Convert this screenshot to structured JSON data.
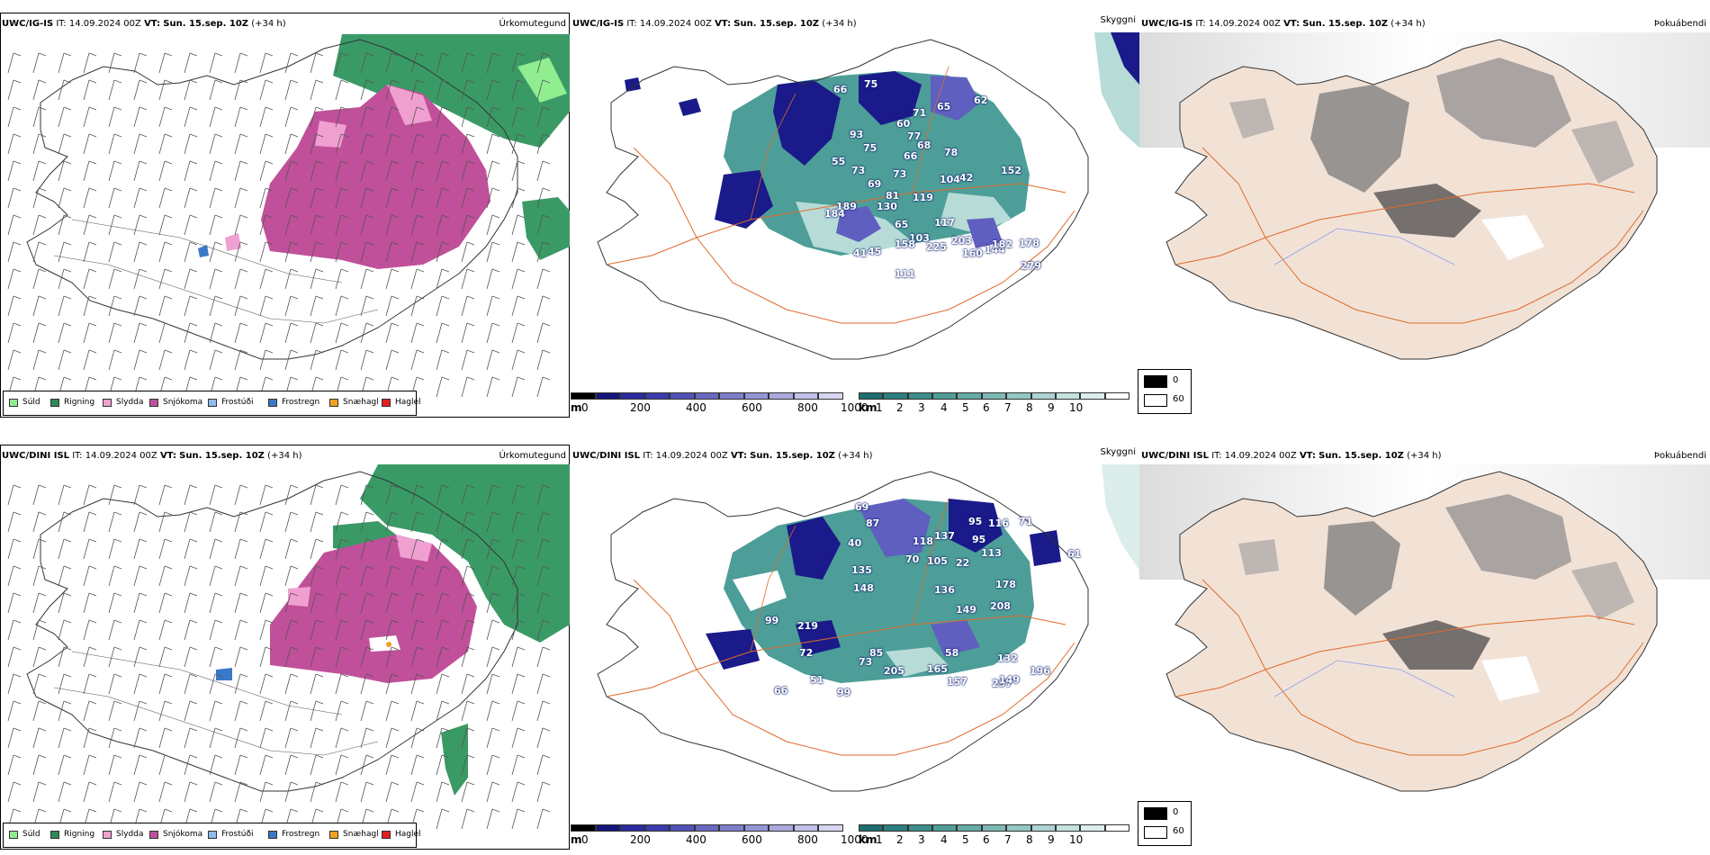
{
  "rows": [
    {
      "id": "ig",
      "precip": {
        "model": "UWC/IG-IS",
        "it_label": "IT:",
        "it_value": "14.09.2024 00Z",
        "vt_label": "VT:",
        "vt_value": "Sun. 15.sep. 10Z",
        "lead": "(+34 h)",
        "title": "Úrkomutegund"
      },
      "cloud": {
        "model": "UWC/IG-IS",
        "it_label": "IT:",
        "it_value": "14.09.2024 00Z",
        "vt_label": "VT:",
        "vt_value": "Sun. 15.sep. 10Z",
        "lead": "(+34 h)",
        "title": "Skyggni",
        "height_labels": [
          "75",
          "66",
          "62",
          "65",
          "71",
          "60",
          "77",
          "68",
          "66",
          "78",
          "93",
          "75",
          "42",
          "55",
          "73",
          "69",
          "152",
          "104",
          "81",
          "119",
          "73",
          "130",
          "189",
          "184",
          "65",
          "117",
          "203",
          "103",
          "144",
          "182",
          "178",
          "158",
          "225",
          "160",
          "279",
          "45",
          "41",
          "111"
        ]
      },
      "fog": {
        "model": "UWC/IG-IS",
        "it_label": "IT:",
        "it_value": "14.09.2024 00Z",
        "vt_label": "VT:",
        "vt_value": "Sun. 15.sep. 10Z",
        "lead": "(+34 h)",
        "title": "Þokuábendi"
      }
    },
    {
      "id": "dini",
      "precip": {
        "model": "UWC/DINI ISL",
        "it_label": "IT:",
        "it_value": "14.09.2024 00Z",
        "vt_label": "VT:",
        "vt_value": "Sun. 15.sep. 10Z",
        "lead": "(+34 h)",
        "title": "Úrkomutegund"
      },
      "cloud": {
        "model": "UWC/DINI ISL",
        "it_label": "IT:",
        "it_value": "14.09.2024 00Z",
        "vt_label": "VT:",
        "vt_value": "Sun. 15.sep. 10Z",
        "lead": "(+34 h)",
        "title": "Skyggni",
        "height_labels": [
          "69",
          "95",
          "116",
          "71",
          "87",
          "137",
          "118",
          "61",
          "95",
          "113",
          "105",
          "70",
          "22",
          "178",
          "40",
          "135",
          "148",
          "136",
          "208",
          "149",
          "219",
          "85",
          "58",
          "72",
          "73",
          "205",
          "165",
          "157",
          "297",
          "149",
          "132",
          "196",
          "51",
          "66",
          "99",
          "99"
        ]
      },
      "fog": {
        "model": "UWC/DINI ISL",
        "it_label": "IT:",
        "it_value": "14.09.2024 00Z",
        "vt_label": "VT:",
        "vt_value": "Sun. 15.sep. 10Z",
        "lead": "(+34 h)",
        "title": "Þokuábendi"
      }
    }
  ],
  "precip_legend": [
    {
      "label": "Súld",
      "color": "#90ee90"
    },
    {
      "label": "Rigning",
      "color": "#2e8b57"
    },
    {
      "label": "Slydda",
      "color": "#f0a0d0"
    },
    {
      "label": "Snjókoma",
      "color": "#c0509a"
    },
    {
      "label": "Frostúði",
      "color": "#8fbcef"
    },
    {
      "label": "Frostregn",
      "color": "#3a78c8"
    },
    {
      "label": "Snæhagl",
      "color": "#f0a020"
    },
    {
      "label": "Haglél",
      "color": "#e02020"
    }
  ],
  "ceiling_bar": {
    "unit": "m",
    "ticks": [
      "0",
      "200",
      "400",
      "600",
      "800",
      "1000"
    ],
    "colors": [
      "#000000",
      "#14147a",
      "#2a2a9e",
      "#3c3cae",
      "#5252b8",
      "#6868c2",
      "#7e7ecc",
      "#9494d6",
      "#aaaadf",
      "#c0c0e8",
      "#d6d6f0"
    ]
  },
  "visibility_bar": {
    "unit": "km",
    "ticks": [
      "1",
      "2",
      "3",
      "4",
      "5",
      "6",
      "7",
      "8",
      "9",
      "10"
    ],
    "colors": [
      "#1e6e6e",
      "#2e7e7e",
      "#3e8e8c",
      "#509c98",
      "#66aaa6",
      "#7cb8b4",
      "#94c6c2",
      "#acd4d0",
      "#c4e2de",
      "#dceeec",
      "#ffffff"
    ]
  },
  "fog_legend": {
    "high_label": "0",
    "low_label": "60",
    "high_color": "#000000",
    "low_color": "#ffffff"
  },
  "colors": {
    "rain": "#3a9a66",
    "snow": "#c0509a",
    "sleet": "#f0a0d0",
    "drizzle": "#90ee90",
    "freezing_rain": "#3a78c8",
    "cloud_deep": "#1a1a8a",
    "cloud_mid": "#5f5fc0",
    "vis_teal": "#4d9e98",
    "vis_light": "#b7dbd6",
    "land_fog": "#f2e2d6",
    "roads": "#e06a2a",
    "rivers": "#8aa0f0"
  }
}
